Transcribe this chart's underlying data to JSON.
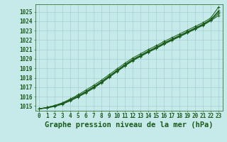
{
  "title": "Graphe pression niveau de la mer (hPa)",
  "xlim": [
    -0.5,
    23.5
  ],
  "ylim": [
    1014.5,
    1025.8
  ],
  "yticks": [
    1015,
    1016,
    1017,
    1018,
    1019,
    1020,
    1021,
    1022,
    1023,
    1024,
    1025
  ],
  "xticks": [
    0,
    1,
    2,
    3,
    4,
    5,
    6,
    7,
    8,
    9,
    10,
    11,
    12,
    13,
    14,
    15,
    16,
    17,
    18,
    19,
    20,
    21,
    22,
    23
  ],
  "background_color": "#c6e9e9",
  "grid_color": "#9dcece",
  "line_color": "#1a5c1a",
  "marker": "+",
  "series": [
    [
      1014.7,
      1014.85,
      1015.05,
      1015.35,
      1015.75,
      1016.2,
      1016.7,
      1017.2,
      1017.75,
      1018.35,
      1018.95,
      1019.55,
      1020.1,
      1020.55,
      1021.0,
      1021.4,
      1021.85,
      1022.25,
      1022.65,
      1023.05,
      1023.45,
      1023.85,
      1024.35,
      1025.5
    ],
    [
      1014.7,
      1014.85,
      1015.05,
      1015.3,
      1015.65,
      1016.1,
      1016.55,
      1017.05,
      1017.6,
      1018.2,
      1018.8,
      1019.4,
      1019.95,
      1020.4,
      1020.85,
      1021.25,
      1021.7,
      1022.1,
      1022.5,
      1022.9,
      1023.3,
      1023.7,
      1024.2,
      1025.1
    ],
    [
      1014.7,
      1014.85,
      1015.05,
      1015.3,
      1015.65,
      1016.05,
      1016.5,
      1017.0,
      1017.55,
      1018.15,
      1018.75,
      1019.35,
      1019.9,
      1020.35,
      1020.8,
      1021.2,
      1021.65,
      1022.05,
      1022.45,
      1022.85,
      1023.25,
      1023.65,
      1024.15,
      1025.0
    ],
    [
      1014.7,
      1014.8,
      1015.0,
      1015.25,
      1015.6,
      1016.0,
      1016.45,
      1016.95,
      1017.5,
      1018.1,
      1018.7,
      1019.3,
      1019.85,
      1020.3,
      1020.75,
      1021.15,
      1021.6,
      1022.0,
      1022.4,
      1022.8,
      1023.2,
      1023.6,
      1024.1,
      1024.8
    ],
    [
      1014.7,
      1014.8,
      1014.95,
      1015.2,
      1015.55,
      1015.95,
      1016.4,
      1016.9,
      1017.45,
      1018.05,
      1018.65,
      1019.25,
      1019.8,
      1020.25,
      1020.7,
      1021.1,
      1021.55,
      1021.95,
      1022.35,
      1022.75,
      1023.15,
      1023.55,
      1024.05,
      1024.6
    ]
  ],
  "figsize": [
    3.2,
    2.0
  ],
  "dpi": 100,
  "title_fontsize": 7.5,
  "tick_fontsize": 5.5,
  "linewidth": 0.7,
  "markersize": 3.0,
  "markeredgewidth": 0.7
}
